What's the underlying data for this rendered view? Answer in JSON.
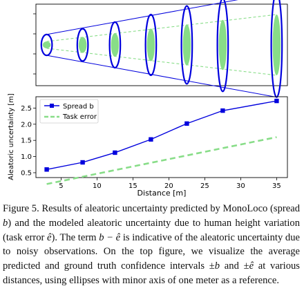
{
  "chart_data": [
    {
      "type": "ellipse-diagram",
      "x": [
        3,
        8,
        12.5,
        17.5,
        22.5,
        27.5,
        35
      ],
      "predicted_half_height_m": [
        0.55,
        0.85,
        1.2,
        1.6,
        2.05,
        2.45,
        2.75
      ],
      "ground_truth_half_height_m": [
        0.18,
        0.42,
        0.62,
        0.86,
        1.08,
        1.32,
        1.6
      ],
      "minor_axis_m": 1,
      "colors": {
        "predicted": "#0000dd",
        "ground_truth": "#88dd88"
      }
    },
    {
      "type": "line",
      "xlabel": "Distance [m]",
      "ylabel": "Aleatoric uncertainty [m]",
      "xticks": [
        5,
        10,
        15,
        20,
        25,
        30,
        35
      ],
      "yticks": [
        0.5,
        1.0,
        1.5,
        2.0,
        2.5
      ],
      "xlim": [
        1.5,
        36.5
      ],
      "ylim": [
        0.35,
        2.85
      ],
      "legend_position": "top-left",
      "series": [
        {
          "name": "Spread b",
          "x": [
            3,
            8,
            12.5,
            17.5,
            22.5,
            27.5,
            35
          ],
          "values": [
            0.6,
            0.82,
            1.12,
            1.53,
            2.02,
            2.42,
            2.72
          ],
          "color": "#0000dd",
          "style": "solid-square"
        },
        {
          "name": "Task error",
          "x": [
            3,
            35
          ],
          "values": [
            0.15,
            1.6
          ],
          "color": "#88dd88",
          "style": "dashed"
        }
      ]
    }
  ],
  "caption": {
    "p1": "Figure 5. Results of aleatoric uncertainty predicted by MonoLoco (spread ",
    "b1": "b",
    "p2": ") and the modeled aleatoric uncertainty due to human height variation (task error ",
    "ehat1": "ê",
    "p3": "). The term ",
    "expr": "b − ê",
    "p4": " is indicative of the aleatoric uncertainty due to noisy observations. On the top figure, we visualize the average predicted and ground truth confidence intervals ±",
    "b2": "b",
    "p5": " and ±",
    "ehat2": "ê",
    "p6": " at various distances, using ellipses with minor axis of one meter as a reference."
  }
}
